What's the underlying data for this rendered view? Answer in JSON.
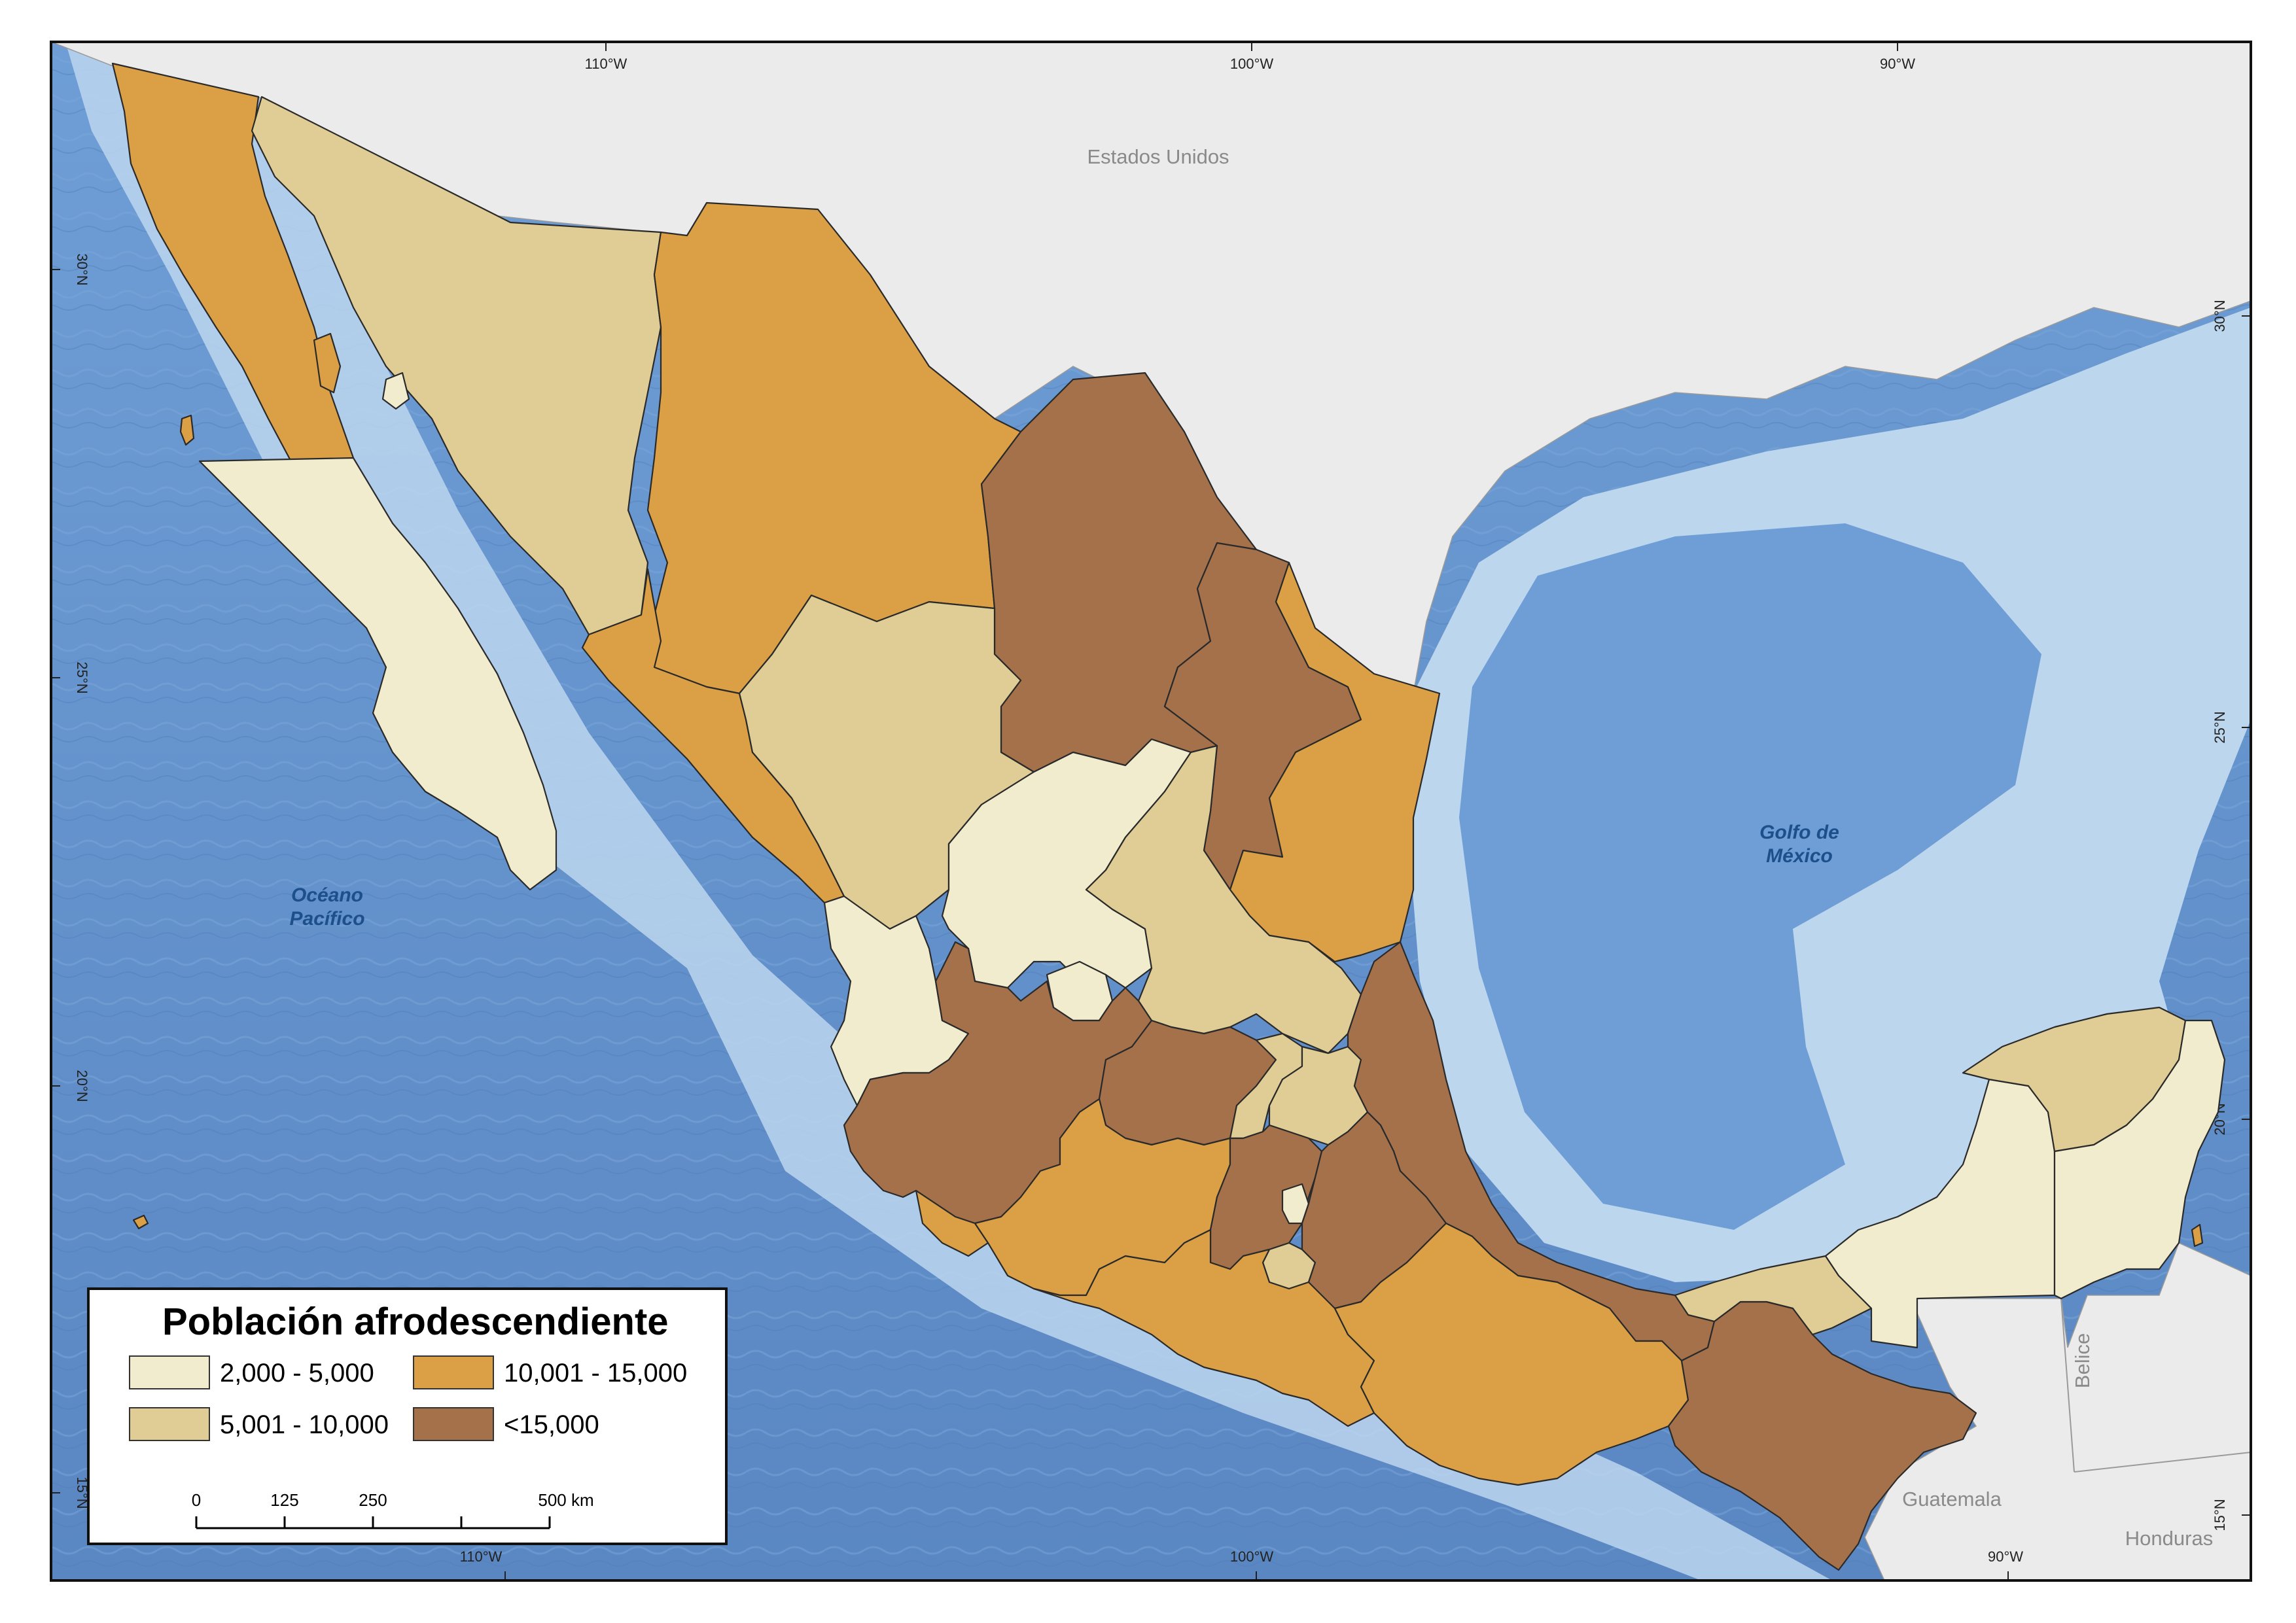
{
  "map": {
    "graticule": {
      "top": [
        "110°W",
        "100°W",
        "90°W"
      ],
      "bottom": [
        "110°W",
        "100°W",
        "90°W"
      ],
      "left": [
        "30°N",
        "25°N",
        "20°N",
        "15°N"
      ],
      "right": [
        "30°N",
        "25°N",
        "20°N",
        "15°N"
      ]
    },
    "place_labels": {
      "usa": "Estados Unidos",
      "guatemala": "Guatemala",
      "belize": "Belice",
      "honduras": "Honduras",
      "pacific": [
        "Océano",
        "Pacífico"
      ],
      "gulf": [
        "Golfo de",
        "México"
      ]
    }
  },
  "legend": {
    "title": "Población afrodescendiente",
    "classes": [
      {
        "label": "2,000 - 5,000",
        "color": "#f1ecce"
      },
      {
        "label": "5,001 - 10,000",
        "color": "#dfcd95"
      },
      {
        "label": "10,001 - 15,000",
        "color": "#dba046"
      },
      {
        "label": "<15,000",
        "color": "#a5714b"
      }
    ]
  },
  "scale_bar": {
    "ticks": [
      "0",
      "125",
      "250",
      "500 km"
    ]
  },
  "colors": {
    "ocean_deep": "#5f8fcc",
    "ocean_shelf": "#bcd6ee",
    "land_other": "#ebebeb"
  },
  "states": [
    {
      "name": "Baja California",
      "class": 2
    },
    {
      "name": "Baja California Sur",
      "class": 0
    },
    {
      "name": "Sonora",
      "class": 1
    },
    {
      "name": "Chihuahua",
      "class": 2
    },
    {
      "name": "Coahuila",
      "class": 3
    },
    {
      "name": "Nuevo León",
      "class": 3
    },
    {
      "name": "Tamaulipas",
      "class": 2
    },
    {
      "name": "Sinaloa",
      "class": 2
    },
    {
      "name": "Durango",
      "class": 1
    },
    {
      "name": "Nayarit",
      "class": 0
    },
    {
      "name": "Zacatecas",
      "class": 0
    },
    {
      "name": "San Luis Potosí",
      "class": 1
    },
    {
      "name": "Aguascalientes",
      "class": 0
    },
    {
      "name": "Jalisco",
      "class": 3
    },
    {
      "name": "Guanajuato",
      "class": 3
    },
    {
      "name": "Querétaro",
      "class": 1
    },
    {
      "name": "Hidalgo",
      "class": 1
    },
    {
      "name": "Veracruz",
      "class": 3
    },
    {
      "name": "Colima",
      "class": 2
    },
    {
      "name": "Michoacán",
      "class": 2
    },
    {
      "name": "Estado de México",
      "class": 3
    },
    {
      "name": "Ciudad de México",
      "class": 0
    },
    {
      "name": "Morelos",
      "class": 1
    },
    {
      "name": "Tlaxcala",
      "class": 0
    },
    {
      "name": "Puebla",
      "class": 3
    },
    {
      "name": "Guerrero",
      "class": 2
    },
    {
      "name": "Oaxaca",
      "class": 2
    },
    {
      "name": "Chiapas",
      "class": 3
    },
    {
      "name": "Tabasco",
      "class": 1
    },
    {
      "name": "Campeche",
      "class": 0
    },
    {
      "name": "Yucatán",
      "class": 1
    },
    {
      "name": "Quintana Roo",
      "class": 0
    }
  ]
}
